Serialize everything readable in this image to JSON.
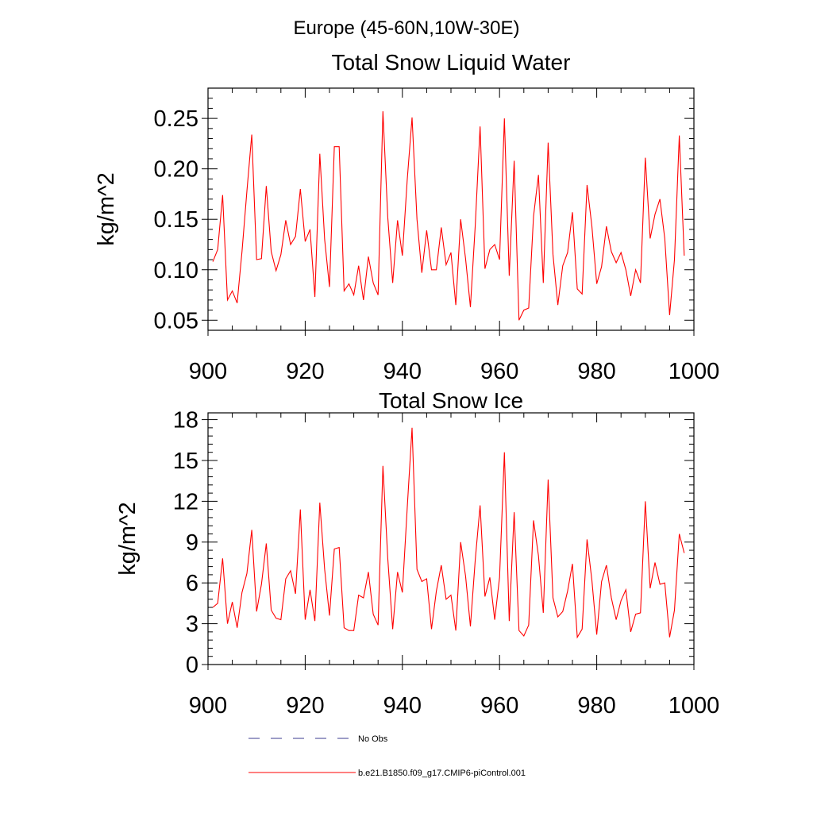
{
  "figure": {
    "title": "Europe (45-60N,10W-30E)"
  },
  "legend": [
    {
      "label": "No Obs",
      "style": "dashed",
      "color": "#3b3b8f"
    },
    {
      "label": "b.e21.B1850.f09_g17.CMIP6-piControl.001",
      "style": "solid",
      "color": "#ff0000"
    }
  ],
  "chart_data": [
    {
      "type": "line",
      "title": "Total Snow Liquid Water",
      "xlabel": "",
      "ylabel": "kg/m^2",
      "xlim": [
        900,
        1000
      ],
      "ylim": [
        0.04,
        0.28
      ],
      "xticks": [
        900,
        920,
        940,
        960,
        980,
        1000
      ],
      "xtick_labels": [
        "900",
        "920",
        "940",
        "960",
        "980",
        "1000"
      ],
      "yticks": [
        0.05,
        0.1,
        0.15,
        0.2,
        0.25
      ],
      "ytick_labels": [
        "0.05",
        "0.10",
        "0.15",
        "0.20",
        "0.25"
      ],
      "x": [
        901,
        902,
        903,
        904,
        905,
        906,
        907,
        908,
        909,
        910,
        911,
        912,
        913,
        914,
        915,
        916,
        917,
        918,
        919,
        920,
        921,
        922,
        923,
        924,
        925,
        926,
        927,
        928,
        929,
        930,
        931,
        932,
        933,
        934,
        935,
        936,
        937,
        938,
        939,
        940,
        941,
        942,
        943,
        944,
        945,
        946,
        947,
        948,
        949,
        950,
        951,
        952,
        953,
        954,
        955,
        956,
        957,
        958,
        959,
        960,
        961,
        962,
        963,
        964,
        965,
        966,
        967,
        968,
        969,
        970,
        971,
        972,
        973,
        974,
        975,
        976,
        977,
        978,
        979,
        980,
        981,
        982,
        983,
        984,
        985,
        986,
        987,
        988,
        989,
        990,
        991,
        992,
        993,
        994,
        995,
        996,
        997,
        998
      ],
      "series": [
        {
          "name": "b.e21.B1850.f09_g17.CMIP6-piControl.001",
          "color": "#ff0000",
          "values": [
            0.108,
            0.12,
            0.174,
            0.07,
            0.079,
            0.067,
            0.118,
            0.178,
            0.234,
            0.11,
            0.111,
            0.183,
            0.118,
            0.099,
            0.115,
            0.149,
            0.125,
            0.133,
            0.18,
            0.128,
            0.14,
            0.073,
            0.215,
            0.13,
            0.083,
            0.222,
            0.222,
            0.079,
            0.086,
            0.075,
            0.104,
            0.07,
            0.113,
            0.087,
            0.075,
            0.257,
            0.152,
            0.087,
            0.149,
            0.114,
            0.189,
            0.251,
            0.15,
            0.097,
            0.139,
            0.1,
            0.1,
            0.142,
            0.105,
            0.117,
            0.065,
            0.15,
            0.111,
            0.063,
            0.144,
            0.242,
            0.101,
            0.12,
            0.125,
            0.11,
            0.25,
            0.094,
            0.208,
            0.05,
            0.06,
            0.062,
            0.153,
            0.194,
            0.087,
            0.226,
            0.115,
            0.065,
            0.104,
            0.117,
            0.157,
            0.081,
            0.076,
            0.184,
            0.143,
            0.086,
            0.103,
            0.143,
            0.118,
            0.107,
            0.117,
            0.1,
            0.074,
            0.1,
            0.087,
            0.211,
            0.131,
            0.155,
            0.17,
            0.131,
            0.055,
            0.11,
            0.233,
            0.114
          ]
        }
      ]
    },
    {
      "type": "line",
      "title": "Total Snow Ice",
      "xlabel": "",
      "ylabel": "kg/m^2",
      "xlim": [
        900,
        1000
      ],
      "ylim": [
        0,
        18.5
      ],
      "xticks": [
        900,
        920,
        940,
        960,
        980,
        1000
      ],
      "xtick_labels": [
        "900",
        "920",
        "940",
        "960",
        "980",
        "1000"
      ],
      "yticks": [
        0,
        3,
        6,
        9,
        12,
        15,
        18
      ],
      "ytick_labels": [
        "0",
        "3",
        "6",
        "9",
        "12",
        "15",
        "18"
      ],
      "x": [
        901,
        902,
        903,
        904,
        905,
        906,
        907,
        908,
        909,
        910,
        911,
        912,
        913,
        914,
        915,
        916,
        917,
        918,
        919,
        920,
        921,
        922,
        923,
        924,
        925,
        926,
        927,
        928,
        929,
        930,
        931,
        932,
        933,
        934,
        935,
        936,
        937,
        938,
        939,
        940,
        941,
        942,
        943,
        944,
        945,
        946,
        947,
        948,
        949,
        950,
        951,
        952,
        953,
        954,
        955,
        956,
        957,
        958,
        959,
        960,
        961,
        962,
        963,
        964,
        965,
        966,
        967,
        968,
        969,
        970,
        971,
        972,
        973,
        974,
        975,
        976,
        977,
        978,
        979,
        980,
        981,
        982,
        983,
        984,
        985,
        986,
        987,
        988,
        989,
        990,
        991,
        992,
        993,
        994,
        995,
        996,
        997,
        998
      ],
      "series": [
        {
          "name": "b.e21.B1850.f09_g17.CMIP6-piControl.001",
          "color": "#ff0000",
          "values": [
            4.2,
            4.5,
            7.8,
            3.0,
            4.6,
            2.7,
            5.3,
            6.7,
            9.9,
            3.9,
            5.9,
            8.9,
            4.0,
            3.4,
            3.3,
            6.3,
            6.9,
            5.2,
            11.4,
            3.3,
            5.5,
            3.2,
            11.9,
            7.0,
            3.6,
            8.5,
            8.6,
            2.7,
            2.5,
            2.5,
            5.1,
            4.9,
            6.8,
            3.7,
            2.9,
            14.6,
            7.8,
            2.6,
            6.8,
            5.3,
            11.5,
            17.4,
            7.0,
            6.1,
            6.3,
            2.6,
            5.4,
            7.3,
            4.8,
            5.1,
            2.5,
            9.0,
            6.5,
            2.8,
            7.7,
            11.7,
            5.0,
            6.4,
            3.3,
            6.4,
            15.6,
            3.2,
            11.2,
            2.5,
            2.1,
            2.9,
            10.6,
            8.0,
            3.8,
            13.6,
            4.9,
            3.5,
            3.9,
            5.4,
            7.4,
            2.0,
            2.6,
            9.2,
            6.2,
            2.2,
            6.1,
            7.3,
            4.9,
            3.3,
            4.7,
            5.5,
            2.4,
            3.7,
            3.8,
            12.0,
            5.6,
            7.5,
            5.9,
            6.0,
            2.0,
            4.0,
            9.6,
            8.2
          ]
        }
      ]
    }
  ]
}
